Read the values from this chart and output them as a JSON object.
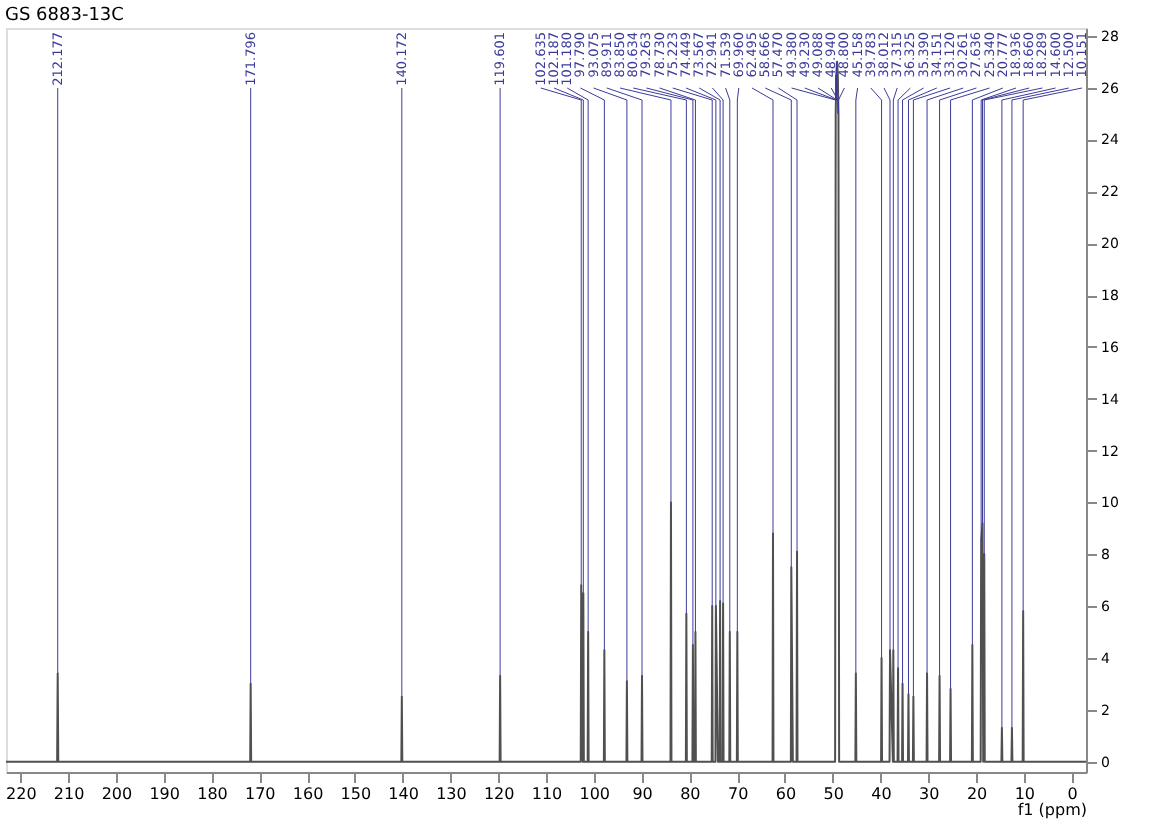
{
  "chart_data": {
    "type": "line",
    "title": "GS 6883-13C",
    "xlabel": "f1 (ppm)",
    "xlim": [
      223,
      -3
    ],
    "ylim": [
      -0.4,
      28.3
    ],
    "xticks": [
      220,
      210,
      200,
      190,
      180,
      170,
      160,
      150,
      140,
      130,
      120,
      110,
      100,
      90,
      80,
      70,
      60,
      50,
      40,
      30,
      20,
      10,
      0
    ],
    "yticks": [
      0,
      2,
      4,
      6,
      8,
      10,
      12,
      14,
      16,
      18,
      20,
      22,
      24,
      26,
      28
    ],
    "grid": false,
    "marker": "none",
    "line_style": "solid",
    "series": [
      {
        "color": "#505050",
        "x": [
          223,
          212.3,
          212.18,
          212.06,
          171.9,
          171.8,
          171.7,
          140.27,
          140.17,
          140.07,
          119.7,
          119.6,
          119.5,
          102.73,
          102.63,
          102.3,
          102.19,
          102.08,
          101.28,
          101.18,
          101.08,
          97.89,
          97.79,
          97.69,
          93.17,
          93.07,
          92.97,
          90.01,
          89.91,
          89.81,
          83.95,
          83.85,
          83.75,
          80.73,
          80.63,
          80.53,
          79.36,
          79.26,
          79.16,
          78.82,
          78.73,
          78.64,
          75.32,
          75.22,
          75.12,
          74.54,
          74.45,
          74.02,
          73.92,
          73.66,
          73.57,
          73.47,
          73.04,
          72.94,
          72.84,
          71.64,
          71.54,
          71.44,
          70.06,
          69.96,
          69.86,
          62.59,
          62.5,
          62.4,
          58.76,
          58.67,
          58.34,
          58.24,
          57.57,
          57.47,
          57.37,
          49.5,
          49.38,
          49.23,
          49.09,
          48.94,
          48.8,
          48.66,
          48.55,
          45.26,
          45.16,
          45.06,
          39.88,
          39.78,
          39.68,
          38.11,
          38.01,
          37.41,
          37.32,
          37.22,
          36.43,
          36.33,
          36.23,
          35.49,
          35.39,
          35.29,
          34.25,
          34.15,
          34.05,
          33.22,
          33.12,
          33.02,
          30.36,
          30.26,
          30.16,
          27.74,
          27.64,
          27.54,
          25.44,
          25.34,
          25.24,
          20.88,
          20.78,
          20.68,
          19.04,
          18.94,
          18.66,
          18.51,
          18.29,
          18.19,
          14.7,
          14.6,
          14.5,
          12.6,
          12.5,
          12.4,
          10.25,
          10.15,
          10.05,
          -3
        ],
        "values": [
          0,
          0,
          3.4,
          0,
          0,
          3.0,
          0,
          0,
          2.5,
          0,
          0,
          3.3,
          0,
          0,
          6.8,
          0,
          6.5,
          0,
          0,
          5.0,
          0,
          0,
          4.3,
          0,
          0,
          3.1,
          0,
          0,
          3.3,
          0,
          0,
          10.0,
          0,
          0,
          5.7,
          0,
          0,
          4.5,
          0,
          0,
          5.0,
          0,
          0,
          6.0,
          0,
          0,
          6.0,
          0,
          0,
          0,
          6.2,
          0,
          0,
          6.1,
          0,
          0,
          5.0,
          0,
          0,
          5.0,
          0,
          0,
          8.8,
          0,
          0,
          7.5,
          0,
          0,
          0,
          8.1,
          0,
          0,
          25.0,
          26.5,
          27.0,
          26.5,
          25.0,
          0,
          0,
          0,
          3.4,
          0,
          0,
          4.0,
          0,
          0,
          4.3,
          0,
          4.3,
          0,
          0,
          3.6,
          0,
          0,
          3.0,
          0,
          0,
          2.6,
          0,
          0,
          2.5,
          0,
          0,
          3.4,
          0,
          0,
          3.3,
          0,
          0,
          2.8,
          0,
          0,
          4.5,
          0,
          0,
          8.5,
          9.2,
          0,
          8.0,
          0,
          0,
          1.3,
          0,
          0,
          1.3,
          0,
          0,
          5.8,
          0,
          0
        ]
      }
    ],
    "annotations": [
      {
        "text": "212.177",
        "x": 212.18,
        "y": 3.4
      },
      {
        "text": "171.796",
        "x": 171.8,
        "y": 3.0
      },
      {
        "text": "140.172",
        "x": 140.17,
        "y": 2.5
      },
      {
        "text": "119.601",
        "x": 119.6,
        "y": 3.3
      },
      {
        "text": "102.635",
        "x": 102.63,
        "y": 6.8
      },
      {
        "text": "102.187",
        "x": 102.19,
        "y": 6.5
      },
      {
        "text": "101.180",
        "x": 101.18,
        "y": 5.0
      },
      {
        "text": "97.790",
        "x": 97.79,
        "y": 4.3
      },
      {
        "text": "93.075",
        "x": 93.07,
        "y": 3.1
      },
      {
        "text": "89.911",
        "x": 89.91,
        "y": 3.3
      },
      {
        "text": "83.850",
        "x": 83.85,
        "y": 10.0
      },
      {
        "text": "80.634",
        "x": 80.63,
        "y": 5.7
      },
      {
        "text": "79.263",
        "x": 79.26,
        "y": 4.5
      },
      {
        "text": "78.730",
        "x": 78.73,
        "y": 5.0
      },
      {
        "text": "75.223",
        "x": 75.22,
        "y": 6.0
      },
      {
        "text": "74.449",
        "x": 74.45,
        "y": 6.0
      },
      {
        "text": "73.567",
        "x": 73.57,
        "y": 6.2
      },
      {
        "text": "72.941",
        "x": 72.94,
        "y": 6.1
      },
      {
        "text": "71.539",
        "x": 71.54,
        "y": 5.0
      },
      {
        "text": "69.960",
        "x": 69.96,
        "y": 5.0
      },
      {
        "text": "62.495",
        "x": 62.5,
        "y": 8.8
      },
      {
        "text": "58.666",
        "x": 58.67,
        "y": 7.5
      },
      {
        "text": "57.470",
        "x": 57.47,
        "y": 8.1
      },
      {
        "text": "49.380",
        "x": 49.38,
        "y": 26.5
      },
      {
        "text": "49.230",
        "x": 49.23,
        "y": 27.0
      },
      {
        "text": "49.088",
        "x": 49.09,
        "y": 26.5
      },
      {
        "text": "48.940",
        "x": 48.94,
        "y": 25.0
      },
      {
        "text": "48.800",
        "x": 48.8,
        "y": 25.0
      },
      {
        "text": "45.158",
        "x": 45.16,
        "y": 3.4
      },
      {
        "text": "39.783",
        "x": 39.78,
        "y": 4.0
      },
      {
        "text": "38.012",
        "x": 38.01,
        "y": 4.3
      },
      {
        "text": "37.315",
        "x": 37.32,
        "y": 4.3
      },
      {
        "text": "36.325",
        "x": 36.33,
        "y": 3.6
      },
      {
        "text": "35.390",
        "x": 35.39,
        "y": 3.0
      },
      {
        "text": "34.151",
        "x": 34.15,
        "y": 2.6
      },
      {
        "text": "33.120",
        "x": 33.12,
        "y": 2.5
      },
      {
        "text": "30.261",
        "x": 30.26,
        "y": 3.4
      },
      {
        "text": "27.636",
        "x": 27.64,
        "y": 3.3
      },
      {
        "text": "25.340",
        "x": 25.34,
        "y": 2.8
      },
      {
        "text": "20.777",
        "x": 20.78,
        "y": 4.5
      },
      {
        "text": "18.936",
        "x": 18.94,
        "y": 8.5
      },
      {
        "text": "18.660",
        "x": 18.66,
        "y": 9.2
      },
      {
        "text": "18.289",
        "x": 18.29,
        "y": 8.0
      },
      {
        "text": "14.600",
        "x": 14.6,
        "y": 1.3
      },
      {
        "text": "12.500",
        "x": 12.5,
        "y": 1.3
      },
      {
        "text": "10.151",
        "x": 10.15,
        "y": 5.8
      }
    ]
  }
}
